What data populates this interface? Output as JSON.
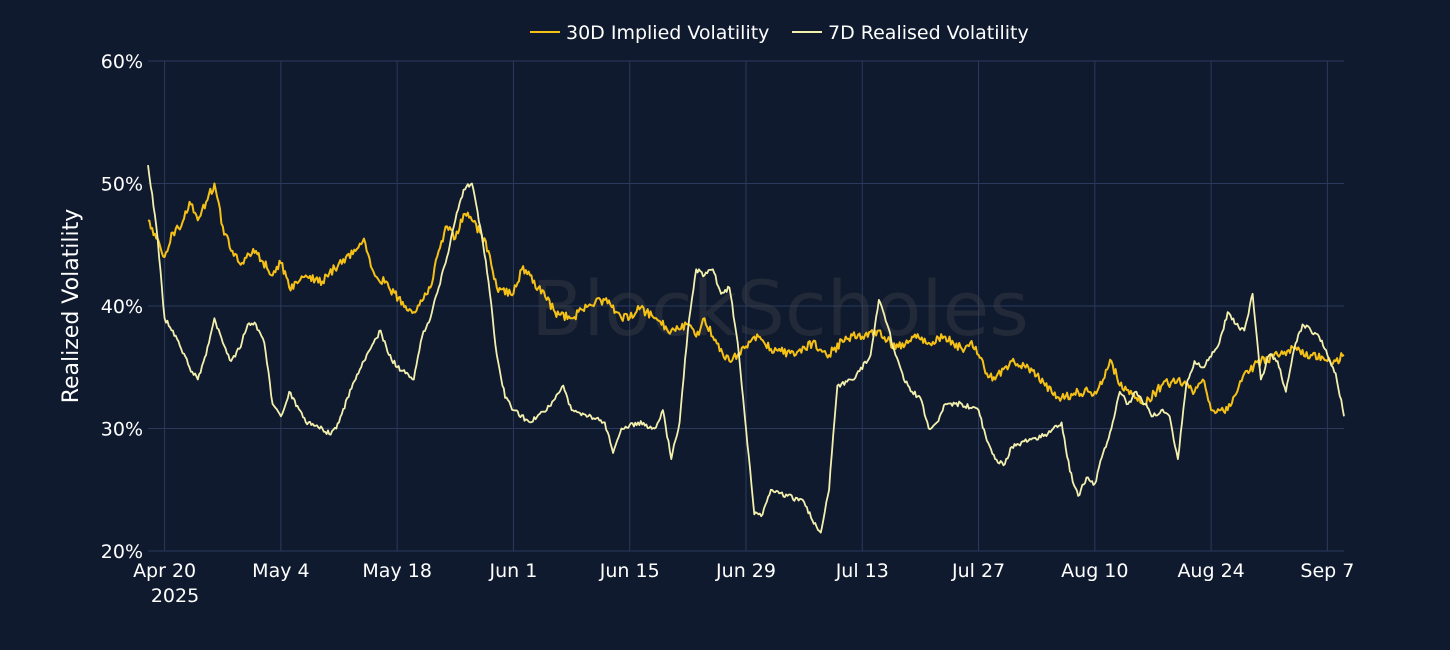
{
  "chart_data": {
    "type": "line",
    "watermark": "BlockScholes",
    "ylabel": "Realized Volatility",
    "y_unit": "%",
    "ylim": [
      20,
      60
    ],
    "yticks": [
      20,
      30,
      40,
      50,
      60
    ],
    "ytick_labels": [
      "20%",
      "30%",
      "40%",
      "50%",
      "60%"
    ],
    "xlim": [
      "2025-04-18",
      "2025-09-09"
    ],
    "xticks": [
      "2025-04-20",
      "2025-05-04",
      "2025-05-18",
      "2025-06-01",
      "2025-06-15",
      "2025-06-29",
      "2025-07-13",
      "2025-07-27",
      "2025-08-10",
      "2025-08-24",
      "2025-09-07"
    ],
    "xtick_labels": [
      "Apr 20",
      "May 4",
      "May 18",
      "Jun 1",
      "Jun 15",
      "Jun 29",
      "Jul 13",
      "Jul 27",
      "Aug 10",
      "Aug 24",
      "Sep 7"
    ],
    "xtick_year": "2025",
    "grid": true,
    "legend_position": "top-center",
    "series": [
      {
        "name": "30D Implied Volatility",
        "color": "#f5c116",
        "points": [
          [
            "2025-04-18",
            47.0
          ],
          [
            "2025-04-19",
            45.5
          ],
          [
            "2025-04-20",
            44.0
          ],
          [
            "2025-04-21",
            46.0
          ],
          [
            "2025-04-22",
            46.5
          ],
          [
            "2025-04-23",
            48.5
          ],
          [
            "2025-04-24",
            47.0
          ],
          [
            "2025-04-25",
            48.5
          ],
          [
            "2025-04-26",
            50.0
          ],
          [
            "2025-04-27",
            46.5
          ],
          [
            "2025-04-28",
            44.5
          ],
          [
            "2025-04-29",
            43.5
          ],
          [
            "2025-05-01",
            44.5
          ],
          [
            "2025-05-03",
            42.5
          ],
          [
            "2025-05-04",
            43.5
          ],
          [
            "2025-05-05",
            41.5
          ],
          [
            "2025-05-07",
            42.5
          ],
          [
            "2025-05-09",
            42.0
          ],
          [
            "2025-05-11",
            43.5
          ],
          [
            "2025-05-13",
            44.5
          ],
          [
            "2025-05-14",
            45.5
          ],
          [
            "2025-05-15",
            43.0
          ],
          [
            "2025-05-17",
            41.5
          ],
          [
            "2025-05-19",
            40.0
          ],
          [
            "2025-05-20",
            39.5
          ],
          [
            "2025-05-22",
            41.5
          ],
          [
            "2025-05-23",
            44.5
          ],
          [
            "2025-05-24",
            46.5
          ],
          [
            "2025-05-25",
            45.5
          ],
          [
            "2025-05-26",
            47.5
          ],
          [
            "2025-05-27",
            47.0
          ],
          [
            "2025-05-28",
            46.0
          ],
          [
            "2025-05-29",
            44.5
          ],
          [
            "2025-05-30",
            41.5
          ],
          [
            "2025-06-01",
            41.0
          ],
          [
            "2025-06-02",
            43.0
          ],
          [
            "2025-06-03",
            42.5
          ],
          [
            "2025-06-04",
            41.5
          ],
          [
            "2025-06-05",
            40.5
          ],
          [
            "2025-06-06",
            39.5
          ],
          [
            "2025-06-08",
            39.0
          ],
          [
            "2025-06-10",
            40.0
          ],
          [
            "2025-06-12",
            40.5
          ],
          [
            "2025-06-14",
            39.0
          ],
          [
            "2025-06-15",
            39.0
          ],
          [
            "2025-06-16",
            40.0
          ],
          [
            "2025-06-18",
            39.0
          ],
          [
            "2025-06-20",
            38.0
          ],
          [
            "2025-06-22",
            38.5
          ],
          [
            "2025-06-23",
            37.5
          ],
          [
            "2025-06-24",
            39.0
          ],
          [
            "2025-06-25",
            37.5
          ],
          [
            "2025-06-26",
            36.5
          ],
          [
            "2025-06-27",
            35.5
          ],
          [
            "2025-06-28",
            36.0
          ],
          [
            "2025-06-30",
            37.5
          ],
          [
            "2025-07-02",
            36.5
          ],
          [
            "2025-07-05",
            36.0
          ],
          [
            "2025-07-07",
            37.0
          ],
          [
            "2025-07-09",
            36.0
          ],
          [
            "2025-07-11",
            37.5
          ],
          [
            "2025-07-13",
            37.5
          ],
          [
            "2025-07-15",
            38.0
          ],
          [
            "2025-07-17",
            36.5
          ],
          [
            "2025-07-19",
            37.5
          ],
          [
            "2025-07-21",
            37.0
          ],
          [
            "2025-07-23",
            37.5
          ],
          [
            "2025-07-25",
            36.5
          ],
          [
            "2025-07-26",
            37.0
          ],
          [
            "2025-07-27",
            36.0
          ],
          [
            "2025-07-28",
            34.5
          ],
          [
            "2025-07-29",
            34.0
          ],
          [
            "2025-07-31",
            35.5
          ],
          [
            "2025-08-02",
            35.0
          ],
          [
            "2025-08-04",
            33.5
          ],
          [
            "2025-08-06",
            32.5
          ],
          [
            "2025-08-08",
            33.0
          ],
          [
            "2025-08-10",
            33.0
          ],
          [
            "2025-08-11",
            34.0
          ],
          [
            "2025-08-12",
            35.5
          ],
          [
            "2025-08-13",
            33.5
          ],
          [
            "2025-08-15",
            32.5
          ],
          [
            "2025-08-16",
            32.0
          ],
          [
            "2025-08-18",
            33.5
          ],
          [
            "2025-08-20",
            34.0
          ],
          [
            "2025-08-22",
            33.0
          ],
          [
            "2025-08-23",
            34.0
          ],
          [
            "2025-08-24",
            31.5
          ],
          [
            "2025-08-26",
            31.5
          ],
          [
            "2025-08-28",
            34.5
          ],
          [
            "2025-08-30",
            35.5
          ],
          [
            "2025-09-01",
            36.0
          ],
          [
            "2025-09-03",
            36.5
          ],
          [
            "2025-09-05",
            36.0
          ],
          [
            "2025-09-07",
            35.5
          ],
          [
            "2025-09-08",
            35.5
          ],
          [
            "2025-09-09",
            36.0
          ]
        ]
      },
      {
        "name": "7D Realised Volatility",
        "color": "#f3f0ae",
        "points": [
          [
            "2025-04-18",
            51.5
          ],
          [
            "2025-04-19",
            46.5
          ],
          [
            "2025-04-20",
            39.0
          ],
          [
            "2025-04-21",
            38.0
          ],
          [
            "2025-04-22",
            36.5
          ],
          [
            "2025-04-23",
            35.0
          ],
          [
            "2025-04-24",
            34.0
          ],
          [
            "2025-04-25",
            36.0
          ],
          [
            "2025-04-26",
            39.0
          ],
          [
            "2025-04-27",
            37.0
          ],
          [
            "2025-04-28",
            35.5
          ],
          [
            "2025-04-29",
            36.5
          ],
          [
            "2025-04-30",
            38.5
          ],
          [
            "2025-05-01",
            38.5
          ],
          [
            "2025-05-02",
            37.0
          ],
          [
            "2025-05-03",
            32.0
          ],
          [
            "2025-05-04",
            31.0
          ],
          [
            "2025-05-05",
            33.0
          ],
          [
            "2025-05-07",
            30.5
          ],
          [
            "2025-05-09",
            30.0
          ],
          [
            "2025-05-10",
            29.5
          ],
          [
            "2025-05-11",
            30.5
          ],
          [
            "2025-05-12",
            32.5
          ],
          [
            "2025-05-13",
            34.0
          ],
          [
            "2025-05-14",
            35.5
          ],
          [
            "2025-05-16",
            38.0
          ],
          [
            "2025-05-17",
            36.0
          ],
          [
            "2025-05-18",
            35.0
          ],
          [
            "2025-05-19",
            34.5
          ],
          [
            "2025-05-20",
            34.0
          ],
          [
            "2025-05-21",
            37.5
          ],
          [
            "2025-05-22",
            39.0
          ],
          [
            "2025-05-23",
            41.5
          ],
          [
            "2025-05-24",
            44.0
          ],
          [
            "2025-05-25",
            47.0
          ],
          [
            "2025-05-26",
            49.5
          ],
          [
            "2025-05-27",
            50.0
          ],
          [
            "2025-05-28",
            46.5
          ],
          [
            "2025-05-29",
            42.0
          ],
          [
            "2025-05-30",
            36.0
          ],
          [
            "2025-05-31",
            32.5
          ],
          [
            "2025-06-01",
            31.5
          ],
          [
            "2025-06-03",
            30.5
          ],
          [
            "2025-06-05",
            31.5
          ],
          [
            "2025-06-07",
            33.5
          ],
          [
            "2025-06-08",
            31.5
          ],
          [
            "2025-06-10",
            31.0
          ],
          [
            "2025-06-12",
            30.5
          ],
          [
            "2025-06-13",
            28.0
          ],
          [
            "2025-06-14",
            30.0
          ],
          [
            "2025-06-16",
            30.5
          ],
          [
            "2025-06-18",
            30.0
          ],
          [
            "2025-06-19",
            31.5
          ],
          [
            "2025-06-20",
            27.5
          ],
          [
            "2025-06-21",
            30.5
          ],
          [
            "2025-06-22",
            38.0
          ],
          [
            "2025-06-23",
            43.0
          ],
          [
            "2025-06-24",
            42.5
          ],
          [
            "2025-06-25",
            43.0
          ],
          [
            "2025-06-26",
            41.0
          ],
          [
            "2025-06-27",
            41.5
          ],
          [
            "2025-06-28",
            37.0
          ],
          [
            "2025-06-29",
            30.0
          ],
          [
            "2025-06-30",
            23.0
          ],
          [
            "2025-07-01",
            23.0
          ],
          [
            "2025-07-02",
            25.0
          ],
          [
            "2025-07-04",
            24.5
          ],
          [
            "2025-07-06",
            24.0
          ],
          [
            "2025-07-07",
            22.5
          ],
          [
            "2025-07-08",
            21.5
          ],
          [
            "2025-07-09",
            25.0
          ],
          [
            "2025-07-10",
            33.5
          ],
          [
            "2025-07-12",
            34.0
          ],
          [
            "2025-07-14",
            36.0
          ],
          [
            "2025-07-15",
            40.5
          ],
          [
            "2025-07-16",
            38.5
          ],
          [
            "2025-07-17",
            36.0
          ],
          [
            "2025-07-18",
            34.0
          ],
          [
            "2025-07-19",
            33.0
          ],
          [
            "2025-07-20",
            32.5
          ],
          [
            "2025-07-21",
            30.0
          ],
          [
            "2025-07-22",
            30.5
          ],
          [
            "2025-07-23",
            32.0
          ],
          [
            "2025-07-25",
            32.0
          ],
          [
            "2025-07-27",
            31.5
          ],
          [
            "2025-07-28",
            29.0
          ],
          [
            "2025-07-29",
            27.5
          ],
          [
            "2025-07-30",
            27.0
          ],
          [
            "2025-07-31",
            28.5
          ],
          [
            "2025-08-02",
            29.0
          ],
          [
            "2025-08-04",
            29.5
          ],
          [
            "2025-08-05",
            30.0
          ],
          [
            "2025-08-06",
            30.5
          ],
          [
            "2025-08-07",
            26.5
          ],
          [
            "2025-08-08",
            24.5
          ],
          [
            "2025-08-09",
            26.0
          ],
          [
            "2025-08-10",
            25.5
          ],
          [
            "2025-08-11",
            28.0
          ],
          [
            "2025-08-12",
            30.0
          ],
          [
            "2025-08-13",
            33.0
          ],
          [
            "2025-08-14",
            32.0
          ],
          [
            "2025-08-15",
            33.0
          ],
          [
            "2025-08-16",
            32.0
          ],
          [
            "2025-08-17",
            31.0
          ],
          [
            "2025-08-18",
            31.5
          ],
          [
            "2025-08-19",
            31.0
          ],
          [
            "2025-08-20",
            27.5
          ],
          [
            "2025-08-21",
            33.5
          ],
          [
            "2025-08-22",
            35.5
          ],
          [
            "2025-08-23",
            35.0
          ],
          [
            "2025-08-25",
            37.0
          ],
          [
            "2025-08-26",
            39.5
          ],
          [
            "2025-08-27",
            38.5
          ],
          [
            "2025-08-28",
            38.0
          ],
          [
            "2025-08-29",
            41.0
          ],
          [
            "2025-08-30",
            34.0
          ],
          [
            "2025-08-31",
            36.0
          ],
          [
            "2025-09-01",
            35.5
          ],
          [
            "2025-09-02",
            33.0
          ],
          [
            "2025-09-03",
            36.5
          ],
          [
            "2025-09-04",
            38.5
          ],
          [
            "2025-09-05",
            38.0
          ],
          [
            "2025-09-06",
            37.5
          ],
          [
            "2025-09-07",
            36.0
          ],
          [
            "2025-09-08",
            34.5
          ],
          [
            "2025-09-09",
            31.0
          ]
        ]
      }
    ]
  }
}
